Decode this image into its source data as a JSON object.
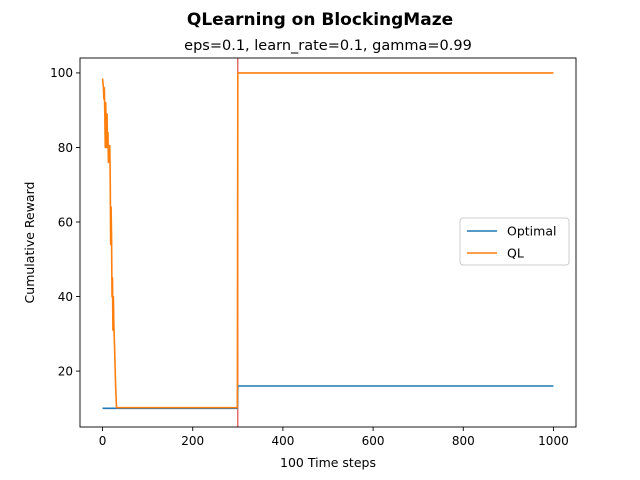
{
  "chart_data": {
    "type": "line",
    "title": "QLearning on BlockingMaze",
    "subtitle": "eps=0.1, learn_rate=0.1, gamma=0.99",
    "xlabel": "100 Time steps",
    "ylabel": "Cumulative Reward",
    "xlim": [
      -50,
      1050
    ],
    "ylim": [
      5,
      104
    ],
    "xticks": [
      0,
      200,
      400,
      600,
      800,
      1000
    ],
    "yticks": [
      20,
      40,
      60,
      80,
      100
    ],
    "grid": false,
    "legend_position": "center-right",
    "vline": {
      "x": 300,
      "color": "#d62728"
    },
    "series": [
      {
        "name": "Optimal",
        "color": "#1f77b4",
        "points": [
          [
            0,
            10
          ],
          [
            299,
            10
          ],
          [
            300,
            16
          ],
          [
            1000,
            16
          ]
        ]
      },
      {
        "name": "QL",
        "color": "#ff7f0e",
        "points": [
          [
            0,
            98.5
          ],
          [
            2,
            96
          ],
          [
            3,
            93
          ],
          [
            4,
            96
          ],
          [
            5,
            89
          ],
          [
            6,
            80
          ],
          [
            7,
            92
          ],
          [
            8,
            86
          ],
          [
            9,
            80
          ],
          [
            10,
            89
          ],
          [
            11,
            80
          ],
          [
            12,
            84
          ],
          [
            13,
            76
          ],
          [
            14,
            80
          ],
          [
            15,
            77
          ],
          [
            16,
            80.5
          ],
          [
            17,
            72
          ],
          [
            18,
            54
          ],
          [
            19,
            64
          ],
          [
            20,
            56
          ],
          [
            21,
            40
          ],
          [
            22,
            45
          ],
          [
            23,
            31
          ],
          [
            24,
            40
          ],
          [
            25,
            33
          ],
          [
            27,
            25
          ],
          [
            29,
            16
          ],
          [
            31,
            10.2
          ],
          [
            299,
            10.2
          ],
          [
            300,
            100
          ],
          [
            1000,
            100
          ]
        ]
      }
    ]
  }
}
